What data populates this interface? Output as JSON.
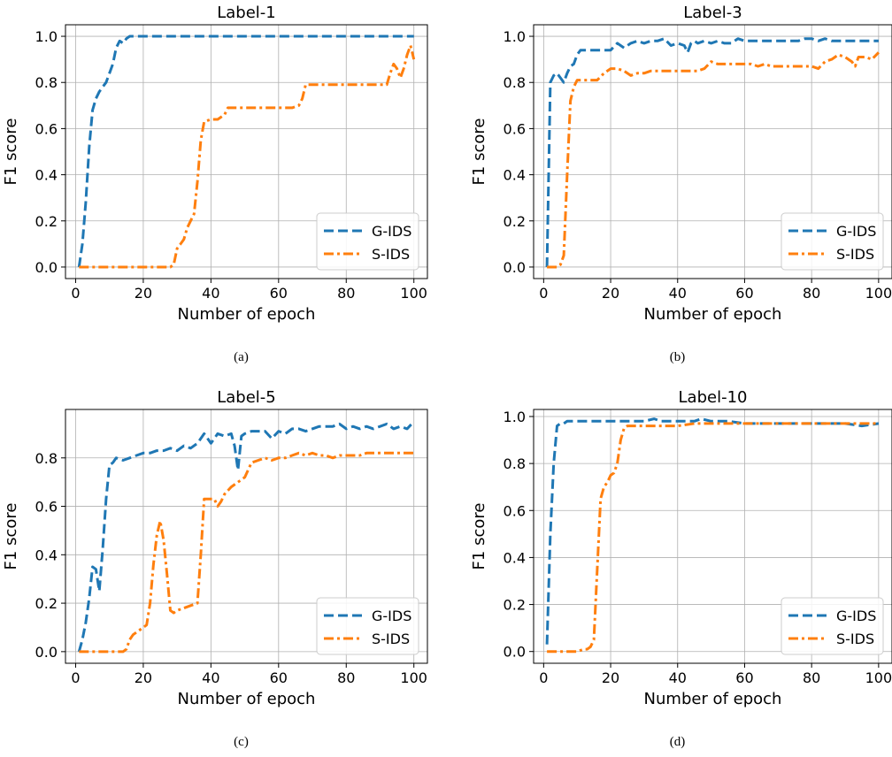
{
  "figure": {
    "captions": [
      "(a)",
      "(b)",
      "(c)",
      "(d)"
    ]
  },
  "style": {
    "g_ids_color": "#1f77b4",
    "s_ids_color": "#ff7f0e",
    "grid_color": "#b0b0b0"
  },
  "chart_data": [
    {
      "type": "line",
      "title": "Label-1",
      "xlabel": "Number of epoch",
      "ylabel": "F1 score",
      "xlim": [
        -3,
        104
      ],
      "ylim": [
        -0.05,
        1.05
      ],
      "xticks": [
        0,
        20,
        40,
        60,
        80,
        100
      ],
      "yticks": [
        0.0,
        0.2,
        0.4,
        0.6,
        0.8,
        1.0
      ],
      "tick_format": "1",
      "grid": true,
      "legend_position": "lower-right",
      "series": [
        {
          "name": "G-IDS",
          "linestyle": "dashed",
          "x": [
            1,
            2,
            3,
            4,
            5,
            6,
            7,
            8,
            9,
            10,
            11,
            12,
            13,
            14,
            15,
            16,
            20,
            40,
            60,
            80,
            100
          ],
          "y": [
            0.0,
            0.1,
            0.28,
            0.52,
            0.68,
            0.73,
            0.76,
            0.78,
            0.8,
            0.84,
            0.88,
            0.95,
            0.98,
            0.97,
            0.99,
            1.0,
            1.0,
            1.0,
            1.0,
            1.0,
            1.0
          ]
        },
        {
          "name": "S-IDS",
          "linestyle": "dashdot",
          "x": [
            1,
            5,
            10,
            20,
            28,
            29,
            30,
            31,
            32,
            33,
            34,
            35,
            36,
            37,
            38,
            40,
            42,
            43,
            44,
            45,
            50,
            55,
            60,
            64,
            66,
            67,
            68,
            70,
            75,
            80,
            85,
            90,
            92,
            93,
            94,
            95,
            96,
            97,
            98,
            99,
            100
          ],
          "y": [
            0.0,
            0.0,
            0.0,
            0.0,
            0.0,
            0.01,
            0.08,
            0.1,
            0.12,
            0.17,
            0.2,
            0.23,
            0.37,
            0.55,
            0.63,
            0.64,
            0.64,
            0.65,
            0.66,
            0.69,
            0.69,
            0.69,
            0.69,
            0.69,
            0.7,
            0.73,
            0.79,
            0.79,
            0.79,
            0.79,
            0.79,
            0.79,
            0.79,
            0.84,
            0.88,
            0.86,
            0.82,
            0.86,
            0.92,
            0.96,
            0.9
          ]
        }
      ]
    },
    {
      "type": "line",
      "title": "Label-3",
      "xlabel": "Number of epoch",
      "ylabel": "F1 score",
      "xlim": [
        -3,
        104
      ],
      "ylim": [
        -0.05,
        1.05
      ],
      "xticks": [
        0,
        20,
        40,
        60,
        80,
        100
      ],
      "yticks": [
        0.0,
        0.2,
        0.4,
        0.6,
        0.8,
        1.0
      ],
      "tick_format": "1",
      "grid": true,
      "legend_position": "lower-right",
      "series": [
        {
          "name": "G-IDS",
          "linestyle": "dashed",
          "x": [
            1,
            2,
            3,
            4,
            5,
            6,
            7,
            8,
            9,
            10,
            11,
            12,
            14,
            16,
            18,
            20,
            22,
            24,
            26,
            28,
            30,
            32,
            34,
            36,
            38,
            40,
            42,
            43,
            44,
            45,
            46,
            48,
            50,
            52,
            54,
            56,
            58,
            60,
            62,
            64,
            66,
            68,
            70,
            72,
            74,
            76,
            78,
            80,
            82,
            84,
            86,
            88,
            90,
            92,
            94,
            96,
            98,
            100
          ],
          "y": [
            0.0,
            0.8,
            0.83,
            0.84,
            0.82,
            0.8,
            0.84,
            0.87,
            0.88,
            0.92,
            0.94,
            0.94,
            0.94,
            0.94,
            0.94,
            0.94,
            0.97,
            0.95,
            0.97,
            0.98,
            0.97,
            0.98,
            0.98,
            0.99,
            0.96,
            0.97,
            0.96,
            0.93,
            0.97,
            0.98,
            0.97,
            0.98,
            0.97,
            0.98,
            0.97,
            0.97,
            0.99,
            0.98,
            0.98,
            0.98,
            0.98,
            0.98,
            0.98,
            0.98,
            0.98,
            0.98,
            0.99,
            0.99,
            0.98,
            0.99,
            0.98,
            0.98,
            0.98,
            0.98,
            0.98,
            0.98,
            0.98,
            0.98
          ]
        },
        {
          "name": "S-IDS",
          "linestyle": "dashdot",
          "x": [
            1,
            2,
            3,
            4,
            5,
            6,
            7,
            8,
            9,
            10,
            11,
            12,
            14,
            16,
            18,
            20,
            22,
            24,
            26,
            28,
            30,
            32,
            34,
            36,
            38,
            40,
            42,
            44,
            46,
            48,
            50,
            52,
            54,
            56,
            58,
            60,
            62,
            64,
            66,
            68,
            70,
            72,
            74,
            76,
            78,
            80,
            82,
            84,
            86,
            88,
            90,
            92,
            93,
            94,
            96,
            98,
            100
          ],
          "y": [
            0.0,
            0.0,
            0.0,
            0.0,
            0.01,
            0.05,
            0.4,
            0.72,
            0.78,
            0.81,
            0.81,
            0.81,
            0.81,
            0.81,
            0.84,
            0.86,
            0.86,
            0.85,
            0.83,
            0.84,
            0.84,
            0.85,
            0.85,
            0.85,
            0.85,
            0.85,
            0.85,
            0.85,
            0.85,
            0.86,
            0.89,
            0.88,
            0.88,
            0.88,
            0.88,
            0.88,
            0.88,
            0.87,
            0.88,
            0.87,
            0.87,
            0.87,
            0.87,
            0.87,
            0.87,
            0.87,
            0.86,
            0.89,
            0.9,
            0.92,
            0.91,
            0.89,
            0.87,
            0.91,
            0.91,
            0.9,
            0.93
          ]
        }
      ]
    },
    {
      "type": "line",
      "title": "Label-5",
      "xlabel": "Number of epoch",
      "ylabel": "F1 score",
      "xlim": [
        -3,
        104
      ],
      "ylim": [
        -0.048,
        1.0
      ],
      "xticks": [
        0,
        20,
        40,
        60,
        80,
        100
      ],
      "yticks": [
        0.0,
        0.2,
        0.4,
        0.6,
        0.8
      ],
      "tick_format": "1",
      "grid": true,
      "legend_position": "lower-right",
      "series": [
        {
          "name": "G-IDS",
          "linestyle": "dashed",
          "x": [
            1,
            2,
            3,
            4,
            5,
            6,
            7,
            8,
            9,
            10,
            11,
            12,
            14,
            16,
            18,
            20,
            22,
            24,
            26,
            28,
            30,
            32,
            34,
            36,
            38,
            40,
            42,
            44,
            46,
            47,
            48,
            49,
            50,
            52,
            54,
            56,
            58,
            60,
            62,
            64,
            66,
            68,
            70,
            72,
            74,
            76,
            78,
            80,
            82,
            84,
            86,
            88,
            90,
            92,
            94,
            96,
            98,
            100
          ],
          "y": [
            0.0,
            0.05,
            0.12,
            0.22,
            0.35,
            0.34,
            0.25,
            0.42,
            0.63,
            0.77,
            0.78,
            0.8,
            0.79,
            0.8,
            0.81,
            0.82,
            0.82,
            0.83,
            0.83,
            0.84,
            0.83,
            0.85,
            0.84,
            0.86,
            0.9,
            0.86,
            0.9,
            0.89,
            0.9,
            0.85,
            0.75,
            0.89,
            0.9,
            0.91,
            0.91,
            0.91,
            0.88,
            0.91,
            0.9,
            0.92,
            0.92,
            0.91,
            0.92,
            0.93,
            0.93,
            0.93,
            0.94,
            0.92,
            0.93,
            0.92,
            0.93,
            0.92,
            0.93,
            0.94,
            0.92,
            0.93,
            0.92,
            0.95
          ]
        },
        {
          "name": "S-IDS",
          "linestyle": "dashdot",
          "x": [
            1,
            5,
            10,
            14,
            15,
            16,
            17,
            18,
            20,
            21,
            22,
            23,
            24,
            25,
            26,
            27,
            28,
            29,
            30,
            32,
            34,
            36,
            37,
            38,
            40,
            41,
            42,
            43,
            44,
            46,
            48,
            50,
            52,
            54,
            56,
            58,
            60,
            62,
            64,
            66,
            68,
            70,
            72,
            74,
            76,
            78,
            80,
            82,
            84,
            86,
            88,
            90,
            92,
            94,
            96,
            98,
            100
          ],
          "y": [
            0.0,
            0.0,
            0.0,
            0.0,
            0.01,
            0.05,
            0.07,
            0.08,
            0.1,
            0.11,
            0.2,
            0.36,
            0.48,
            0.54,
            0.46,
            0.32,
            0.17,
            0.16,
            0.17,
            0.18,
            0.19,
            0.2,
            0.4,
            0.63,
            0.63,
            0.63,
            0.6,
            0.62,
            0.65,
            0.68,
            0.7,
            0.72,
            0.78,
            0.79,
            0.8,
            0.79,
            0.8,
            0.8,
            0.81,
            0.82,
            0.81,
            0.82,
            0.81,
            0.81,
            0.8,
            0.81,
            0.81,
            0.81,
            0.81,
            0.82,
            0.82,
            0.82,
            0.82,
            0.82,
            0.82,
            0.82,
            0.82
          ]
        }
      ]
    },
    {
      "type": "line",
      "title": "Label-10",
      "xlabel": "Number of epoch",
      "ylabel": "F1 score",
      "xlim": [
        -3,
        104
      ],
      "ylim": [
        -0.05,
        1.03
      ],
      "xticks": [
        0,
        20,
        40,
        60,
        80,
        100
      ],
      "yticks": [
        0.0,
        0.2,
        0.4,
        0.6,
        0.8,
        1.0
      ],
      "tick_format": "1",
      "grid": true,
      "legend_position": "lower-right",
      "series": [
        {
          "name": "G-IDS",
          "linestyle": "dashed",
          "x": [
            1,
            2,
            3,
            4,
            5,
            6,
            7,
            8,
            10,
            15,
            20,
            25,
            30,
            33,
            35,
            40,
            45,
            47,
            50,
            55,
            60,
            70,
            80,
            90,
            95,
            100
          ],
          "y": [
            0.03,
            0.5,
            0.8,
            0.96,
            0.97,
            0.97,
            0.98,
            0.98,
            0.98,
            0.98,
            0.98,
            0.98,
            0.98,
            0.99,
            0.98,
            0.98,
            0.98,
            0.99,
            0.98,
            0.98,
            0.97,
            0.97,
            0.97,
            0.97,
            0.96,
            0.97
          ]
        },
        {
          "name": "S-IDS",
          "linestyle": "dashdot",
          "x": [
            1,
            5,
            8,
            10,
            12,
            13,
            14,
            15,
            16,
            17,
            18,
            19,
            20,
            21,
            22,
            23,
            24,
            25,
            26,
            28,
            30,
            35,
            40,
            45,
            50,
            55,
            60,
            70,
            80,
            90,
            100
          ],
          "y": [
            0.0,
            0.0,
            0.0,
            0.0,
            0.01,
            0.01,
            0.02,
            0.05,
            0.35,
            0.65,
            0.7,
            0.72,
            0.75,
            0.76,
            0.8,
            0.9,
            0.95,
            0.96,
            0.96,
            0.96,
            0.96,
            0.96,
            0.96,
            0.97,
            0.97,
            0.97,
            0.97,
            0.97,
            0.97,
            0.97,
            0.97
          ]
        }
      ]
    }
  ]
}
